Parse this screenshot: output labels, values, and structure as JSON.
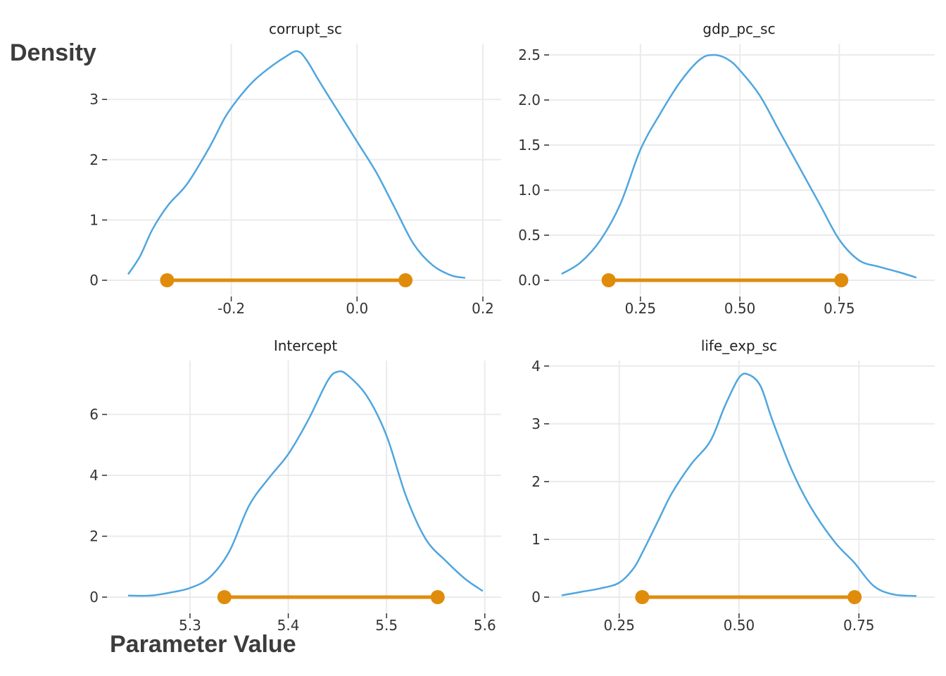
{
  "ylabel": "Density",
  "xlabel": "Parameter Value",
  "colors": {
    "density": "#4fa6df",
    "interval": "#e08c0b",
    "grid": "#ebebeb",
    "text": "#333333",
    "strip": "#222222"
  },
  "chart_data": [
    {
      "type": "line",
      "title": "corrupt_sc",
      "xlim": [
        -0.364,
        0.2
      ],
      "ylim": [
        0,
        3.75
      ],
      "xticks": [
        {
          "v": -0.2,
          "label": "-0.2"
        },
        {
          "v": 0.0,
          "label": "0.0"
        },
        {
          "v": 0.2,
          "label": "0.2"
        }
      ],
      "yticks": [
        {
          "v": 0,
          "label": "0"
        },
        {
          "v": 1,
          "label": "1"
        },
        {
          "v": 2,
          "label": "2"
        },
        {
          "v": 3,
          "label": "3"
        }
      ],
      "interval": [
        -0.302,
        0.077
      ],
      "x": [
        -0.364,
        -0.345,
        -0.325,
        -0.3,
        -0.27,
        -0.235,
        -0.21,
        -0.19,
        -0.165,
        -0.14,
        -0.115,
        -0.095,
        -0.08,
        -0.06,
        -0.03,
        0.0,
        0.03,
        0.06,
        0.09,
        0.12,
        0.15,
        0.172
      ],
      "y": [
        0.1,
        0.4,
        0.85,
        1.25,
        1.6,
        2.2,
        2.7,
        3.0,
        3.3,
        3.52,
        3.7,
        3.8,
        3.65,
        3.3,
        2.8,
        2.3,
        1.8,
        1.2,
        0.6,
        0.25,
        0.08,
        0.04
      ]
    },
    {
      "type": "line",
      "title": "gdp_pc_sc",
      "xlim": [
        0.052,
        0.944
      ],
      "ylim": [
        0,
        2.5
      ],
      "xticks": [
        {
          "v": 0.25,
          "label": "0.25"
        },
        {
          "v": 0.5,
          "label": "0.50"
        },
        {
          "v": 0.75,
          "label": "0.75"
        }
      ],
      "yticks": [
        {
          "v": 0,
          "label": "0.0"
        },
        {
          "v": 0.5,
          "label": "0.5"
        },
        {
          "v": 1.0,
          "label": "1.0"
        },
        {
          "v": 1.5,
          "label": "1.5"
        },
        {
          "v": 2.0,
          "label": "2.0"
        },
        {
          "v": 2.5,
          "label": "2.5"
        }
      ],
      "interval": [
        0.17,
        0.755
      ],
      "x": [
        0.052,
        0.1,
        0.15,
        0.2,
        0.25,
        0.3,
        0.35,
        0.4,
        0.435,
        0.47,
        0.5,
        0.55,
        0.6,
        0.65,
        0.7,
        0.75,
        0.8,
        0.85,
        0.9,
        0.944
      ],
      "y": [
        0.07,
        0.2,
        0.45,
        0.85,
        1.45,
        1.85,
        2.2,
        2.45,
        2.5,
        2.45,
        2.33,
        2.05,
        1.65,
        1.25,
        0.85,
        0.45,
        0.22,
        0.15,
        0.09,
        0.03
      ]
    },
    {
      "type": "line",
      "title": "Intercept",
      "xlim": [
        5.237,
        5.598
      ],
      "ylim": [
        0,
        7.4
      ],
      "xticks": [
        {
          "v": 5.3,
          "label": "5.3"
        },
        {
          "v": 5.4,
          "label": "5.4"
        },
        {
          "v": 5.5,
          "label": "5.5"
        },
        {
          "v": 5.6,
          "label": "5.6"
        }
      ],
      "yticks": [
        {
          "v": 0,
          "label": "0"
        },
        {
          "v": 2,
          "label": "2"
        },
        {
          "v": 4,
          "label": "4"
        },
        {
          "v": 6,
          "label": "6"
        }
      ],
      "interval": [
        5.335,
        5.552
      ],
      "x": [
        5.237,
        5.26,
        5.28,
        5.3,
        5.32,
        5.34,
        5.36,
        5.38,
        5.4,
        5.42,
        5.44,
        5.45,
        5.46,
        5.48,
        5.5,
        5.52,
        5.54,
        5.56,
        5.58,
        5.598
      ],
      "y": [
        0.05,
        0.05,
        0.15,
        0.3,
        0.65,
        1.5,
        3.0,
        3.9,
        4.7,
        5.8,
        7.1,
        7.4,
        7.3,
        6.6,
        5.3,
        3.3,
        1.9,
        1.2,
        0.6,
        0.2
      ]
    },
    {
      "type": "line",
      "title": "life_exp_sc",
      "xlim": [
        0.13,
        0.87
      ],
      "ylim": [
        0,
        3.9
      ],
      "xticks": [
        {
          "v": 0.25,
          "label": "0.25"
        },
        {
          "v": 0.5,
          "label": "0.50"
        },
        {
          "v": 0.75,
          "label": "0.75"
        }
      ],
      "yticks": [
        {
          "v": 0,
          "label": "0"
        },
        {
          "v": 1,
          "label": "1"
        },
        {
          "v": 2,
          "label": "2"
        },
        {
          "v": 3,
          "label": "3"
        },
        {
          "v": 4,
          "label": "4"
        }
      ],
      "interval": [
        0.298,
        0.741
      ],
      "x": [
        0.13,
        0.17,
        0.21,
        0.25,
        0.28,
        0.3,
        0.33,
        0.36,
        0.4,
        0.44,
        0.47,
        0.5,
        0.52,
        0.545,
        0.57,
        0.61,
        0.65,
        0.7,
        0.74,
        0.78,
        0.82,
        0.87
      ],
      "y": [
        0.03,
        0.09,
        0.15,
        0.25,
        0.5,
        0.8,
        1.3,
        1.8,
        2.3,
        2.7,
        3.3,
        3.8,
        3.85,
        3.65,
        3.05,
        2.2,
        1.55,
        0.95,
        0.6,
        0.2,
        0.05,
        0.02
      ]
    }
  ]
}
